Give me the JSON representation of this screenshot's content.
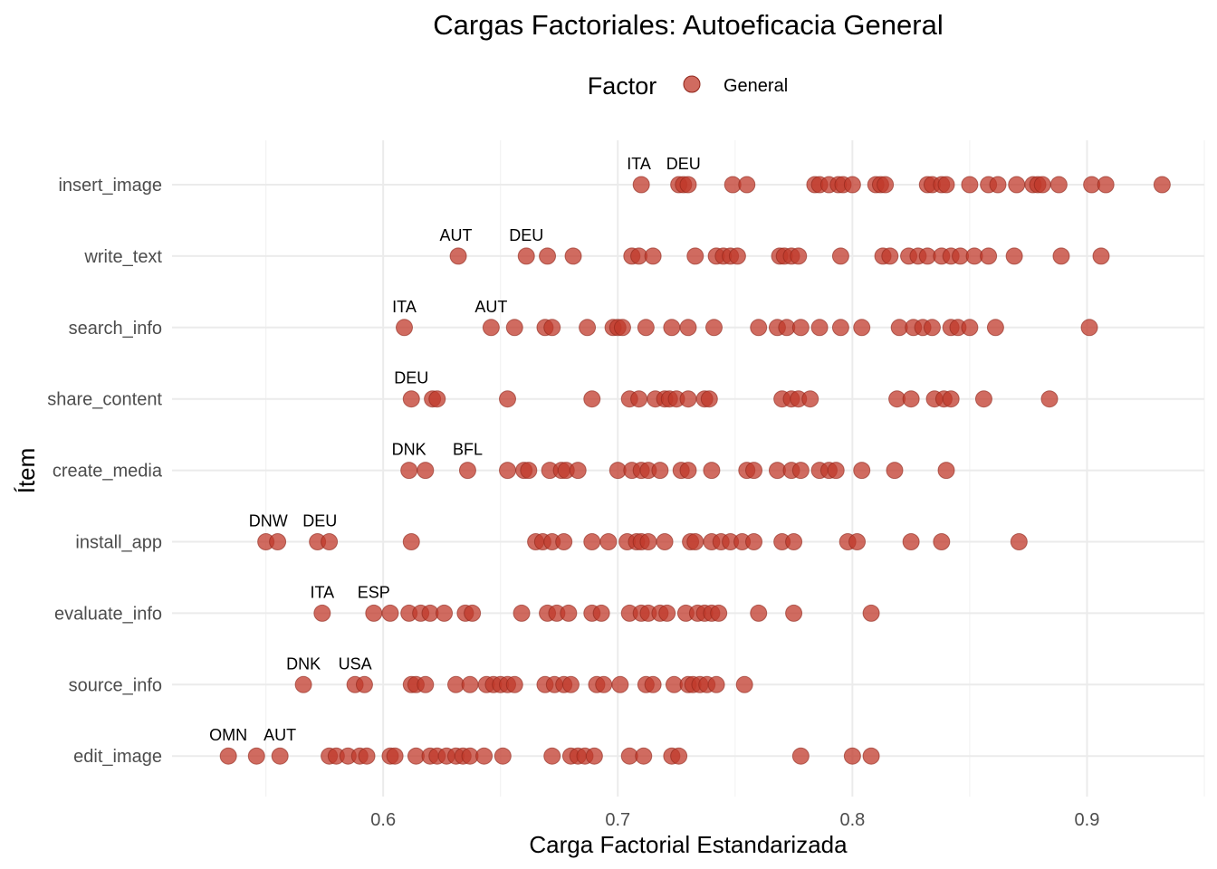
{
  "chart_data": {
    "type": "scatter",
    "title": "Cargas Factoriales: Autoeficacia General",
    "xlabel": "Carga Factorial Estandarizada",
    "ylabel": "Ítem",
    "xlim": [
      0.51,
      0.95
    ],
    "xticks": [
      0.6,
      0.7,
      0.8,
      0.9
    ],
    "x_tick_labels": [
      "0.6",
      "0.7",
      "0.8",
      "0.9"
    ],
    "grid": true,
    "legend": {
      "title": "Factor",
      "position": "top",
      "entries": [
        {
          "name": "General",
          "color": "#C0392B"
        }
      ]
    },
    "categories": [
      "insert_image",
      "write_text",
      "search_info",
      "share_content",
      "create_media",
      "install_app",
      "evaluate_info",
      "source_info",
      "edit_image"
    ],
    "series": [
      {
        "name": "General",
        "color": "#C0392B",
        "points": {
          "insert_image": [
            0.71,
            0.726,
            0.728,
            0.73,
            0.749,
            0.755,
            0.784,
            0.786,
            0.79,
            0.794,
            0.796,
            0.8,
            0.81,
            0.812,
            0.814,
            0.832,
            0.834,
            0.838,
            0.84,
            0.85,
            0.858,
            0.862,
            0.87,
            0.877,
            0.879,
            0.881,
            0.888,
            0.902,
            0.908,
            0.932
          ],
          "write_text": [
            0.632,
            0.661,
            0.67,
            0.681,
            0.706,
            0.709,
            0.715,
            0.733,
            0.742,
            0.745,
            0.748,
            0.751,
            0.769,
            0.771,
            0.774,
            0.777,
            0.795,
            0.813,
            0.816,
            0.824,
            0.828,
            0.832,
            0.838,
            0.842,
            0.846,
            0.852,
            0.858,
            0.869,
            0.889,
            0.906
          ],
          "search_info": [
            0.609,
            0.646,
            0.656,
            0.669,
            0.672,
            0.687,
            0.698,
            0.7,
            0.702,
            0.712,
            0.723,
            0.73,
            0.741,
            0.76,
            0.768,
            0.772,
            0.778,
            0.786,
            0.795,
            0.804,
            0.82,
            0.826,
            0.83,
            0.834,
            0.842,
            0.845,
            0.85,
            0.861,
            0.901
          ],
          "share_content": [
            0.612,
            0.621,
            0.623,
            0.653,
            0.689,
            0.705,
            0.709,
            0.716,
            0.72,
            0.722,
            0.725,
            0.73,
            0.737,
            0.739,
            0.77,
            0.774,
            0.777,
            0.782,
            0.819,
            0.825,
            0.835,
            0.839,
            0.842,
            0.856,
            0.884
          ],
          "create_media": [
            0.611,
            0.618,
            0.636,
            0.653,
            0.66,
            0.662,
            0.671,
            0.676,
            0.678,
            0.683,
            0.7,
            0.706,
            0.71,
            0.713,
            0.718,
            0.727,
            0.73,
            0.74,
            0.755,
            0.758,
            0.768,
            0.774,
            0.778,
            0.786,
            0.79,
            0.793,
            0.804,
            0.818,
            0.84
          ],
          "install_app": [
            0.55,
            0.555,
            0.572,
            0.577,
            0.612,
            0.665,
            0.668,
            0.672,
            0.677,
            0.689,
            0.696,
            0.704,
            0.708,
            0.71,
            0.713,
            0.72,
            0.731,
            0.733,
            0.74,
            0.744,
            0.748,
            0.753,
            0.758,
            0.77,
            0.775,
            0.798,
            0.802,
            0.825,
            0.838,
            0.871
          ],
          "evaluate_info": [
            0.574,
            0.596,
            0.603,
            0.611,
            0.616,
            0.62,
            0.626,
            0.635,
            0.638,
            0.659,
            0.67,
            0.674,
            0.679,
            0.689,
            0.693,
            0.705,
            0.71,
            0.713,
            0.718,
            0.721,
            0.729,
            0.734,
            0.737,
            0.74,
            0.743,
            0.76,
            0.775,
            0.808
          ],
          "source_info": [
            0.566,
            0.588,
            0.592,
            0.612,
            0.614,
            0.618,
            0.631,
            0.637,
            0.644,
            0.647,
            0.65,
            0.653,
            0.656,
            0.669,
            0.673,
            0.677,
            0.68,
            0.691,
            0.694,
            0.701,
            0.712,
            0.715,
            0.724,
            0.73,
            0.732,
            0.735,
            0.738,
            0.742,
            0.754
          ],
          "edit_image": [
            0.534,
            0.546,
            0.556,
            0.577,
            0.58,
            0.585,
            0.59,
            0.593,
            0.603,
            0.605,
            0.614,
            0.62,
            0.623,
            0.627,
            0.631,
            0.634,
            0.637,
            0.643,
            0.651,
            0.672,
            0.68,
            0.683,
            0.686,
            0.69,
            0.705,
            0.711,
            0.723,
            0.726,
            0.778,
            0.8,
            0.808
          ]
        }
      }
    ],
    "annotations": [
      {
        "category": "insert_image",
        "x": 0.709,
        "text": "ITA"
      },
      {
        "category": "insert_image",
        "x": 0.728,
        "text": "DEU"
      },
      {
        "category": "write_text",
        "x": 0.631,
        "text": "AUT"
      },
      {
        "category": "write_text",
        "x": 0.661,
        "text": "DEU"
      },
      {
        "category": "search_info",
        "x": 0.609,
        "text": "ITA"
      },
      {
        "category": "search_info",
        "x": 0.646,
        "text": "AUT"
      },
      {
        "category": "share_content",
        "x": 0.612,
        "text": "DEU"
      },
      {
        "category": "create_media",
        "x": 0.611,
        "text": "DNK"
      },
      {
        "category": "create_media",
        "x": 0.636,
        "text": "BFL"
      },
      {
        "category": "install_app",
        "x": 0.551,
        "text": "DNW"
      },
      {
        "category": "install_app",
        "x": 0.573,
        "text": "DEU"
      },
      {
        "category": "evaluate_info",
        "x": 0.574,
        "text": "ITA"
      },
      {
        "category": "evaluate_info",
        "x": 0.596,
        "text": "ESP"
      },
      {
        "category": "source_info",
        "x": 0.566,
        "text": "DNK"
      },
      {
        "category": "source_info",
        "x": 0.588,
        "text": "USA"
      },
      {
        "category": "edit_image",
        "x": 0.534,
        "text": "OMN"
      },
      {
        "category": "edit_image",
        "x": 0.556,
        "text": "AUT"
      }
    ]
  }
}
